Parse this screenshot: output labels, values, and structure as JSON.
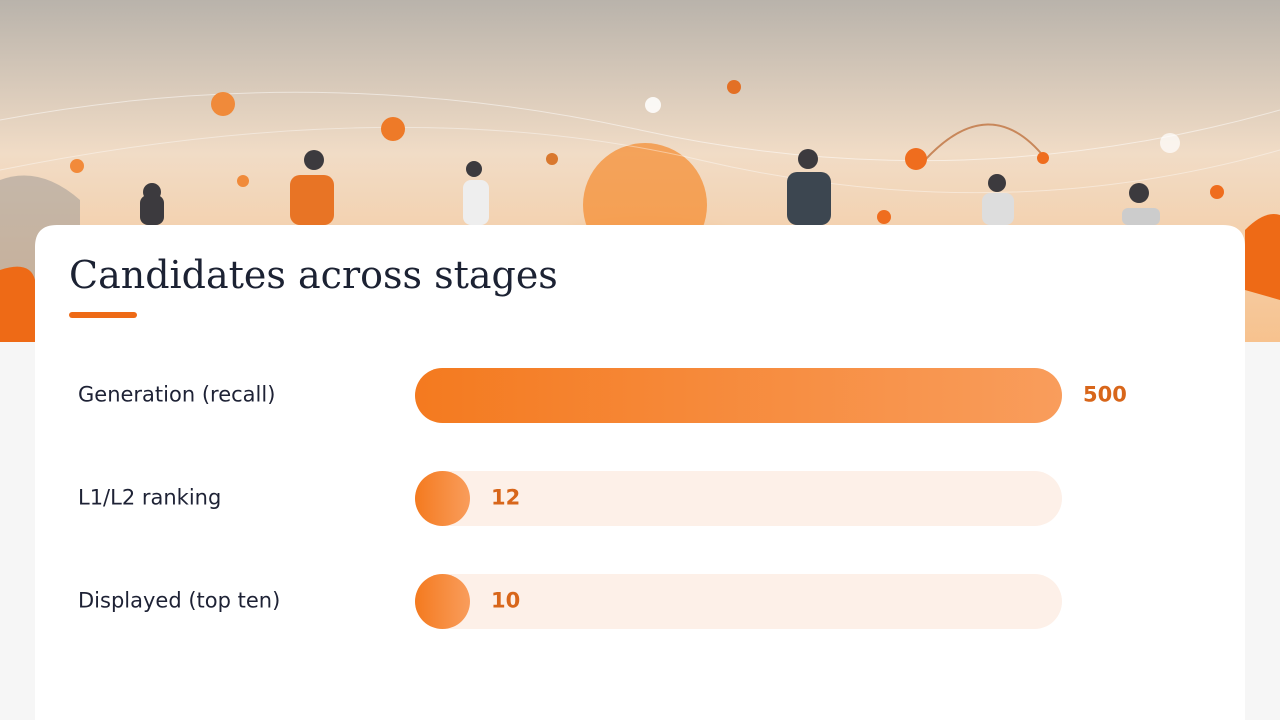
{
  "chart_data": {
    "type": "bar",
    "orientation": "horizontal",
    "title": "Candidates across stages",
    "categories": [
      "Generation (recall)",
      "L1/L2 ranking",
      "Displayed (top ten)"
    ],
    "values": [
      500,
      12,
      10
    ],
    "color": "#f47a1f"
  }
}
